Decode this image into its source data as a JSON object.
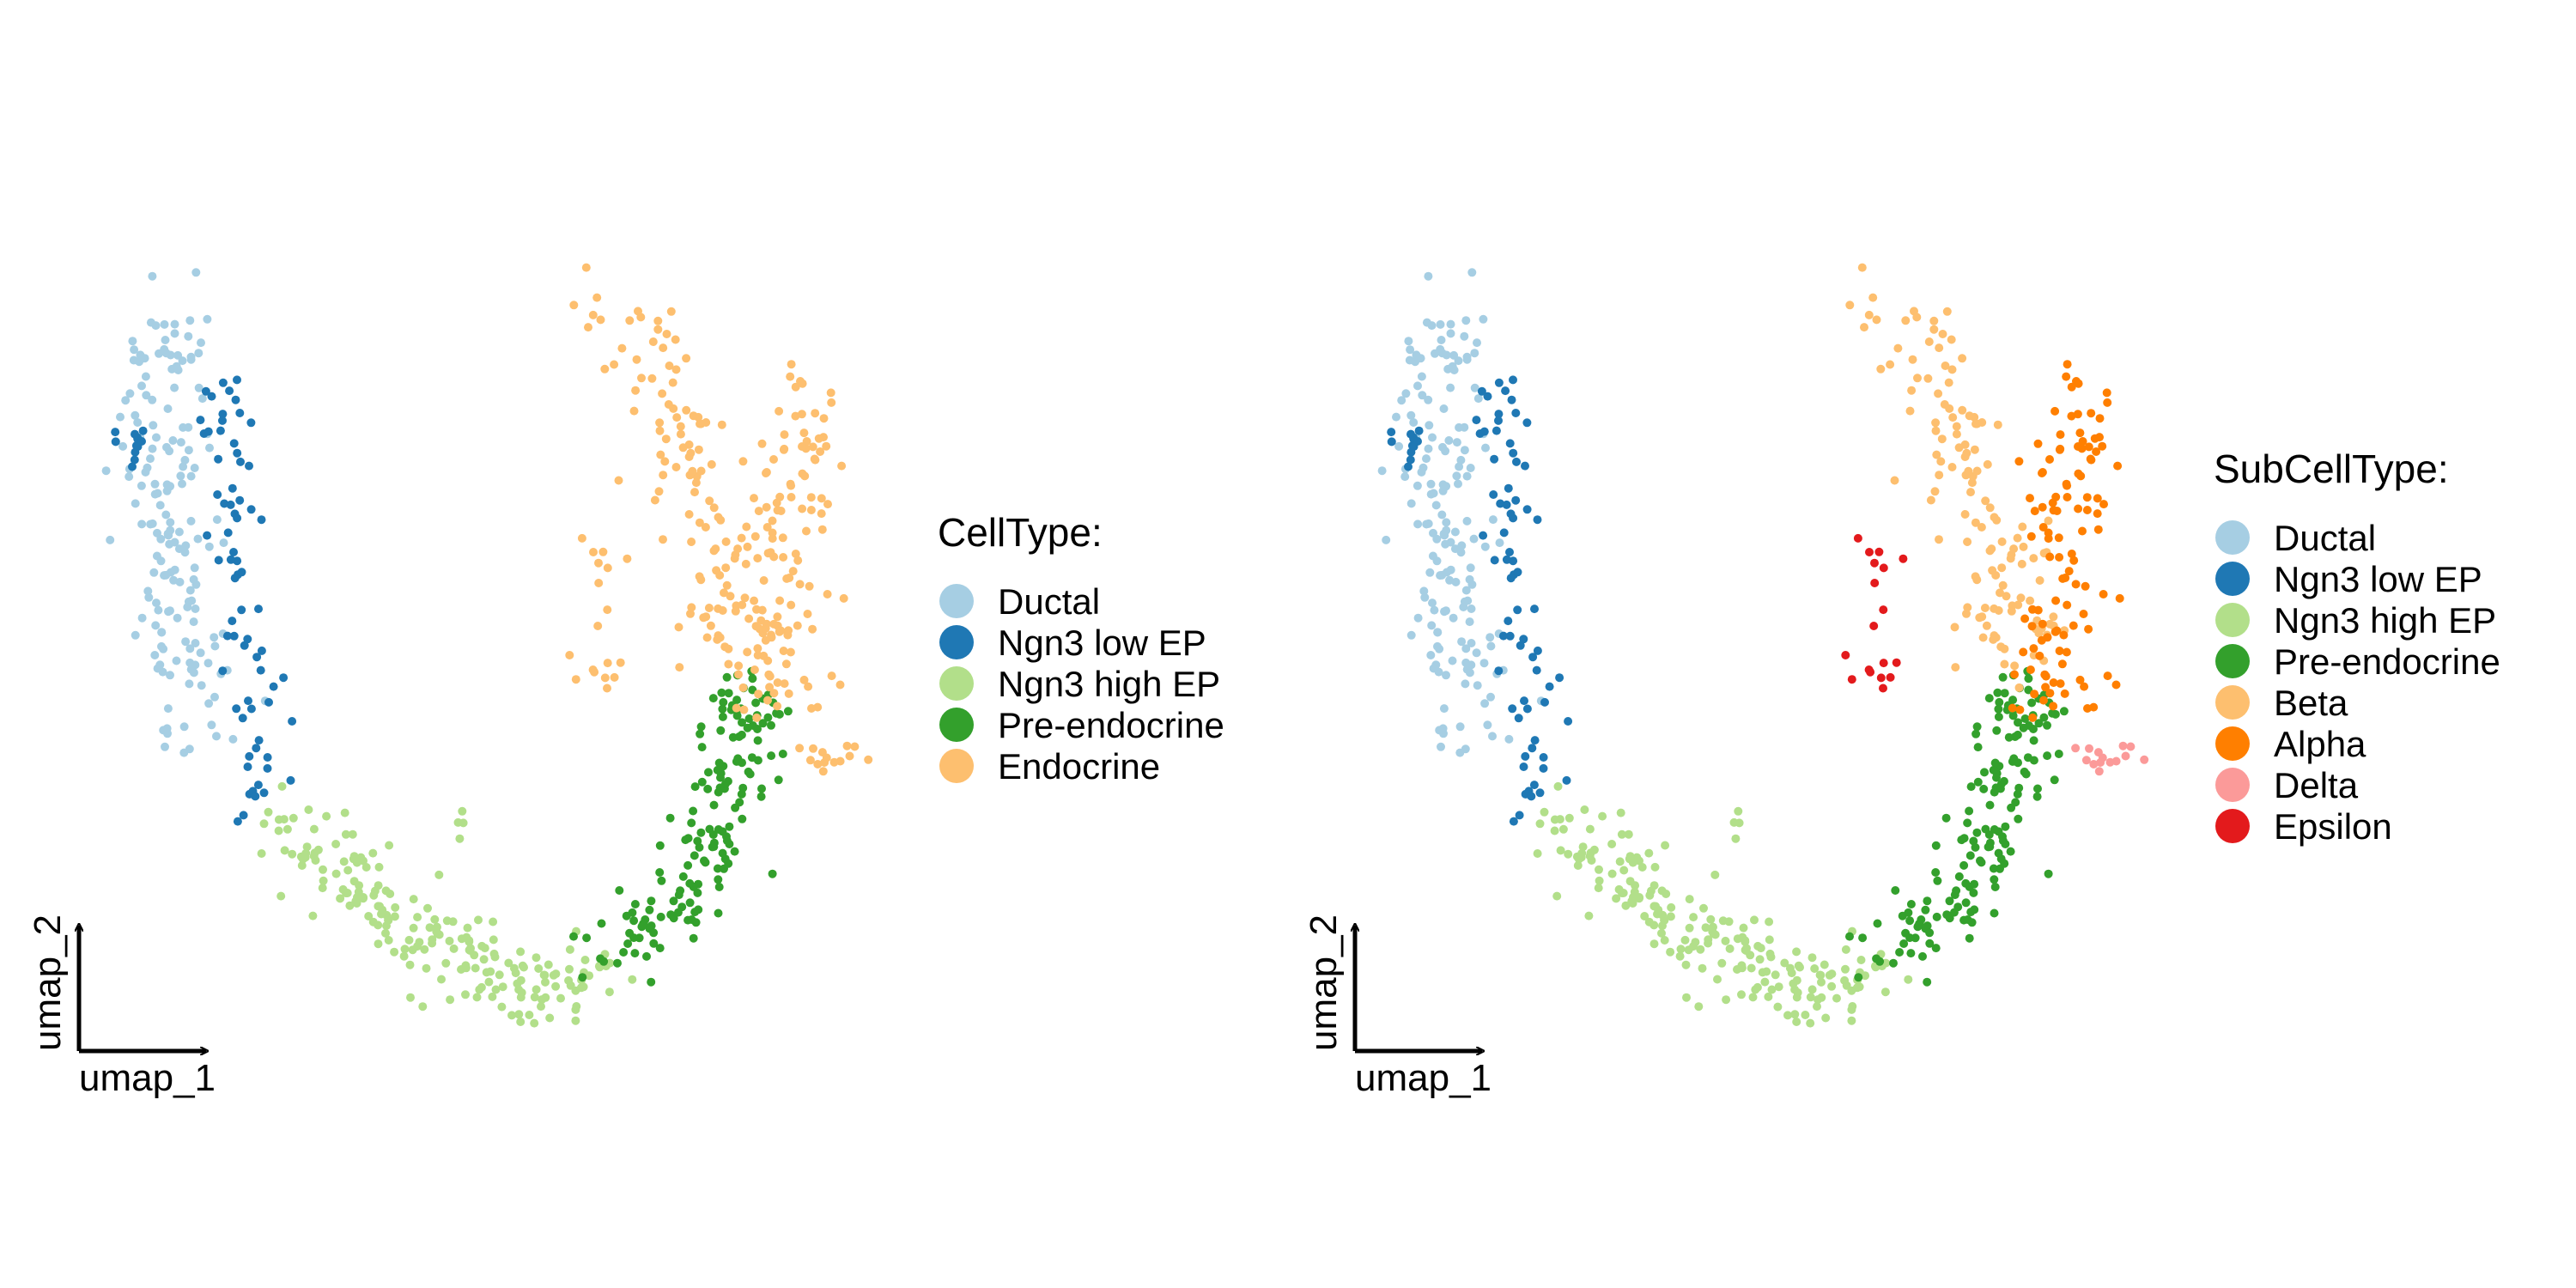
{
  "chart_data": [
    {
      "type": "scatter",
      "xlabel": "umap_1",
      "ylabel": "umap_2",
      "legend": {
        "title": "CellType:",
        "placement": "right",
        "entries": [
          {
            "label": "Ductal",
            "color": "#A6CEE3"
          },
          {
            "label": "Ngn3 low EP",
            "color": "#1F78B4"
          },
          {
            "label": "Ngn3 high EP",
            "color": "#B2DF8A"
          },
          {
            "label": "Pre-endocrine",
            "color": "#33A02C"
          },
          {
            "label": "Endocrine",
            "color": "#FDBF6F"
          }
        ]
      },
      "grid": false,
      "axes": "arrow-only"
    },
    {
      "type": "scatter",
      "xlabel": "umap_1",
      "ylabel": "umap_2",
      "legend": {
        "title": "SubCellType:",
        "placement": "right",
        "entries": [
          {
            "label": "Ductal",
            "color": "#A6CEE3"
          },
          {
            "label": "Ngn3 low EP",
            "color": "#1F78B4"
          },
          {
            "label": "Ngn3 high EP",
            "color": "#B2DF8A"
          },
          {
            "label": "Pre-endocrine",
            "color": "#33A02C"
          },
          {
            "label": "Beta",
            "color": "#FDBF6F"
          },
          {
            "label": "Alpha",
            "color": "#FF7F00"
          },
          {
            "label": "Delta",
            "color": "#FB9A99"
          },
          {
            "label": "Epsilon",
            "color": "#E31A1C"
          }
        ]
      },
      "grid": false,
      "axes": "arrow-only"
    }
  ]
}
